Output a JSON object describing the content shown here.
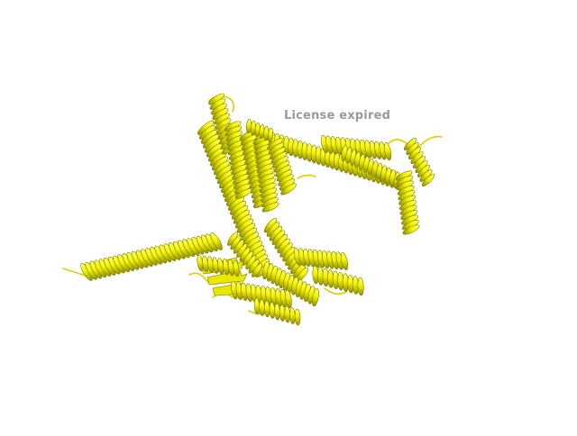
{
  "watermark": {
    "text": "License expired",
    "color": "#9a9a9a"
  },
  "scene": {
    "subject": "protein-cartoon",
    "helix_color": "#f2f200",
    "helix_shadow": "#8f8f00",
    "background": "#ffffff"
  }
}
